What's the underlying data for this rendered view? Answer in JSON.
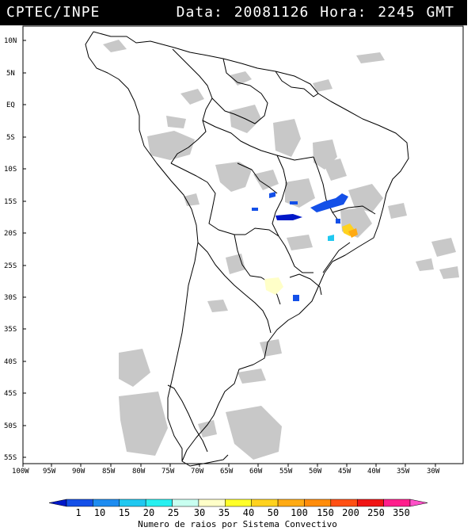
{
  "header": {
    "org": "CPTEC/INPE",
    "date_label": "Data:",
    "date_value": "20081126",
    "hour_label": "Hora:",
    "hour_value": "2245",
    "tz": "GMT"
  },
  "map": {
    "lat_labels": [
      "10N",
      "5N",
      "EQ",
      "5S",
      "10S",
      "15S",
      "20S",
      "25S",
      "30S",
      "35S",
      "40S",
      "45S",
      "50S",
      "55S"
    ],
    "lon_labels": [
      "100W",
      "95W",
      "90W",
      "85W",
      "80W",
      "75W",
      "70W",
      "65W",
      "60W",
      "55W",
      "50W",
      "45W",
      "40W",
      "35W",
      "30W"
    ],
    "colors": {
      "land_border": "#000000",
      "cloud": "#c8c8c8",
      "background": "#ffffff"
    }
  },
  "colorbar": {
    "labels": [
      "1",
      "10",
      "15",
      "20",
      "25",
      "30",
      "35",
      "40",
      "50",
      "100",
      "150",
      "200",
      "250",
      "350"
    ],
    "colors": [
      "#0018c8",
      "#1450e8",
      "#1e8cf0",
      "#20c8f0",
      "#28f0f0",
      "#c8fff0",
      "#ffffc8",
      "#ffff28",
      "#ffd21e",
      "#ffaa14",
      "#ff8c0a",
      "#ff5014",
      "#f01414",
      "#ff1e8c",
      "#ff50c8"
    ],
    "title": "Numero de raios por Sistema Convectivo"
  }
}
